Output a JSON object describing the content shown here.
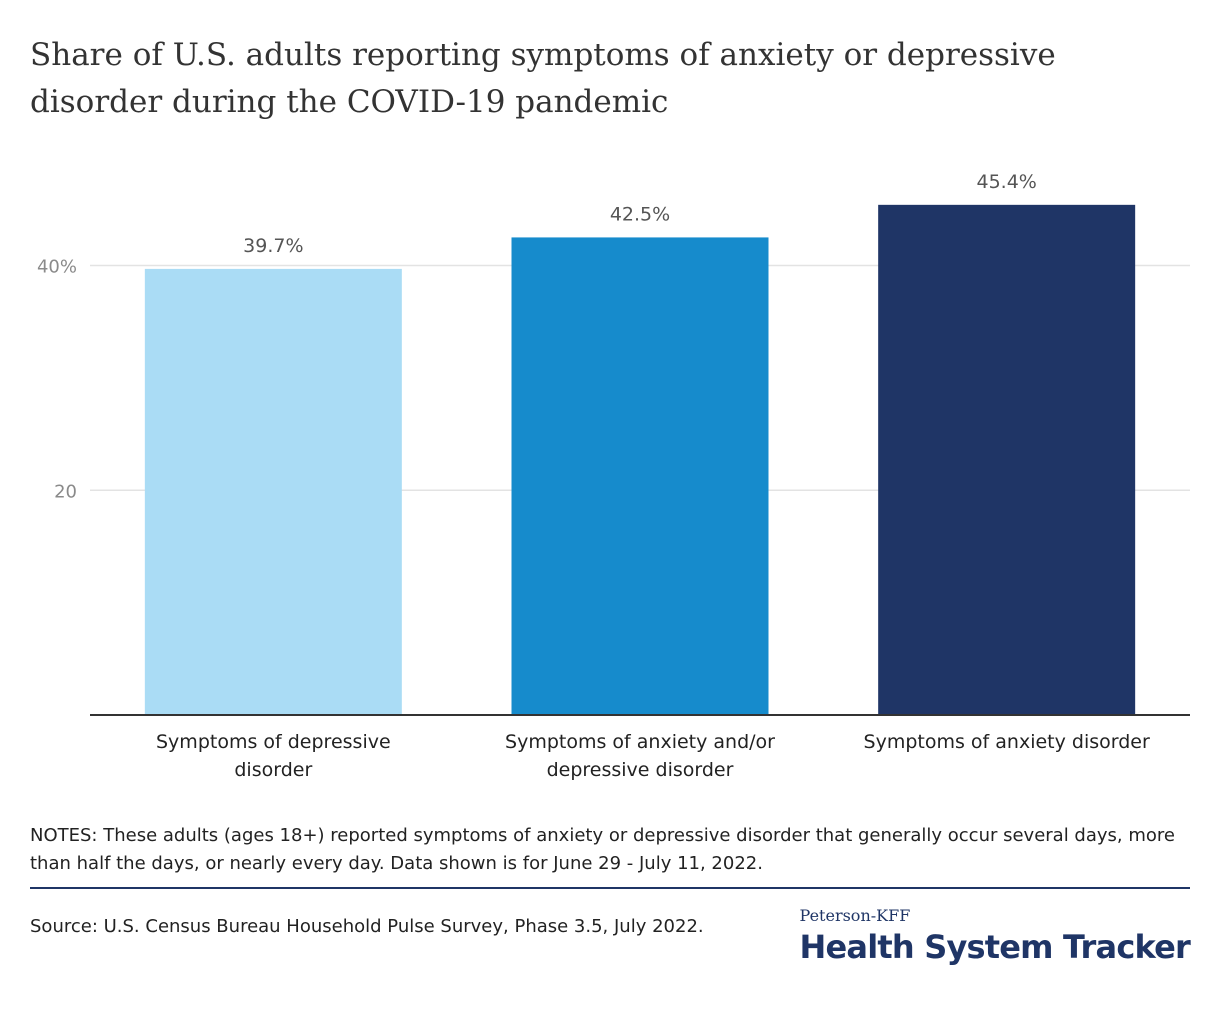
{
  "title": "Share of U.S. adults reporting symptoms of anxiety or depressive disorder during the COVID-19 pandemic",
  "chart_data": {
    "type": "bar",
    "categories": [
      "Symptoms of depressive disorder",
      "Symptoms of anxiety and/or depressive disorder",
      "Symptoms of anxiety disorder"
    ],
    "values": [
      39.7,
      42.5,
      45.4
    ],
    "value_labels": [
      "39.7%",
      "42.5%",
      "45.4%"
    ],
    "colors": [
      "#aadcf5",
      "#168bcc",
      "#1f3566"
    ],
    "y_ticks": [
      {
        "value": 20,
        "label": "20"
      },
      {
        "value": 40,
        "label": "40%"
      }
    ],
    "ylim": [
      0,
      48.5
    ],
    "grid": true,
    "legend": "none"
  },
  "category_lines": [
    [
      "Symptoms of depressive",
      "disorder"
    ],
    [
      "Symptoms of anxiety and/or",
      "depressive disorder"
    ],
    [
      "Symptoms of anxiety disorder"
    ]
  ],
  "notes": "NOTES: These adults (ages 18+) reported symptoms of anxiety or depressive disorder that generally occur several days, more than half the days, or nearly every day. Data shown is for June 29 - July 11, 2022.",
  "source": "Source: U.S. Census Bureau Household Pulse Survey, Phase 3.5, July 2022.",
  "logo": {
    "small": "Peterson-KFF",
    "big": "Health System Tracker"
  }
}
